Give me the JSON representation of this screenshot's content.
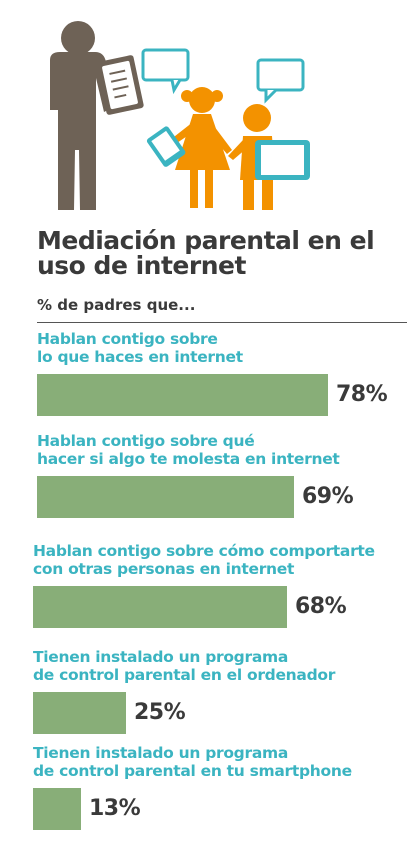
{
  "title": "Mediación parental en el uso de internet",
  "subtitle": "% de padres que...",
  "colors": {
    "bar": "#88ae78",
    "label": "#3bb4c1",
    "text": "#3a3a3a",
    "adult": "#6e6256",
    "child": "#f39200",
    "bubble": "#3bb4c1"
  },
  "chart_data": {
    "type": "bar",
    "orientation": "horizontal",
    "categories": [
      "Hablan contigo sobre\nlo que haces en internet",
      "Hablan contigo sobre qué\nhacer si algo te molesta en internet",
      "Hablan contigo sobre cómo comportarte\ncon otras personas en internet",
      "Tienen instalado un programa\nde control parental en el ordenador",
      "Tienen instalado un programa\nde control parental en tu smartphone"
    ],
    "values": [
      78,
      69,
      68,
      25,
      13
    ],
    "value_labels": [
      "78%",
      "69%",
      "68%",
      "25%",
      "13%"
    ],
    "xlim": [
      0,
      100
    ]
  }
}
